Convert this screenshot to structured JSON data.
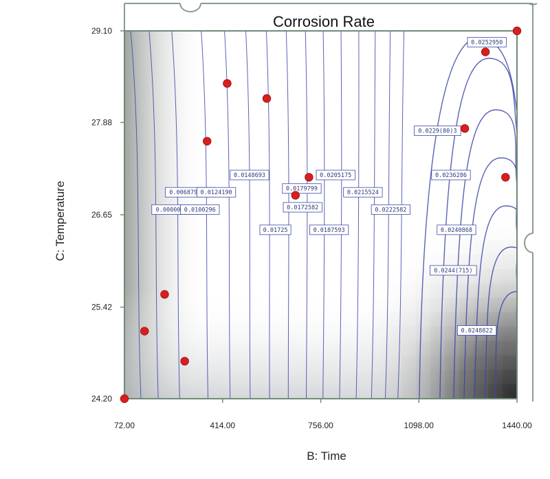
{
  "chart_data": {
    "type": "contour",
    "title": "Corrosion Rate",
    "xlabel": "B: Time",
    "ylabel": "C: Temperature",
    "xlim": [
      72,
      1440
    ],
    "ylim": [
      24.2,
      29.1
    ],
    "x_ticks": [
      "72.00",
      "414.00",
      "756.00",
      "1098.00",
      "1440.00"
    ],
    "y_ticks": [
      "24.20",
      "25.42",
      "26.65",
      "27.88",
      "29.10"
    ],
    "contour_labels": [
      {
        "text": "0.0000001134",
        "x": 255,
        "y": 26.72
      },
      {
        "text": "0.0100296",
        "x": 335,
        "y": 26.72
      },
      {
        "text": "0.0068798(3)",
        "x": 302,
        "y": 26.95
      },
      {
        "text": "0.0124190",
        "x": 392,
        "y": 26.95
      },
      {
        "text": "0.0148693",
        "x": 508,
        "y": 27.18
      },
      {
        "text": "0.01725",
        "x": 598,
        "y": 26.45
      },
      {
        "text": "0.0179799",
        "x": 690,
        "y": 27.0
      },
      {
        "text": "0.0172582",
        "x": 693,
        "y": 26.75
      },
      {
        "text": "0.0187593",
        "x": 785,
        "y": 26.45
      },
      {
        "text": "0.0205175",
        "x": 808,
        "y": 27.18
      },
      {
        "text": "0.0215524",
        "x": 903,
        "y": 26.95
      },
      {
        "text": "0.0222582",
        "x": 1000,
        "y": 26.72
      },
      {
        "text": "0.0229(80)3",
        "x": 1163,
        "y": 27.77
      },
      {
        "text": "0.0236286",
        "x": 1210,
        "y": 27.18
      },
      {
        "text": "0.0240868",
        "x": 1229,
        "y": 26.45
      },
      {
        "text": "0.0244(715)",
        "x": 1218,
        "y": 25.91
      },
      {
        "text": "0.0248822",
        "x": 1300,
        "y": 25.11
      },
      {
        "text": "0.0252950",
        "x": 1335,
        "y": 28.95
      }
    ],
    "design_points": [
      {
        "x": 72,
        "y": 24.2
      },
      {
        "x": 142,
        "y": 25.1
      },
      {
        "x": 212,
        "y": 25.59
      },
      {
        "x": 282,
        "y": 24.7
      },
      {
        "x": 360,
        "y": 27.63
      },
      {
        "x": 430,
        "y": 28.4
      },
      {
        "x": 568,
        "y": 28.2
      },
      {
        "x": 668,
        "y": 26.91
      },
      {
        "x": 715,
        "y": 27.15
      },
      {
        "x": 1258,
        "y": 27.8
      },
      {
        "x": 1330,
        "y": 28.82
      },
      {
        "x": 1400,
        "y": 27.15
      },
      {
        "x": 1440,
        "y": 29.1
      }
    ],
    "colors": {
      "contour": "#3c46a8",
      "point": "#d81e1e",
      "frame": "#8a9a8e"
    }
  }
}
